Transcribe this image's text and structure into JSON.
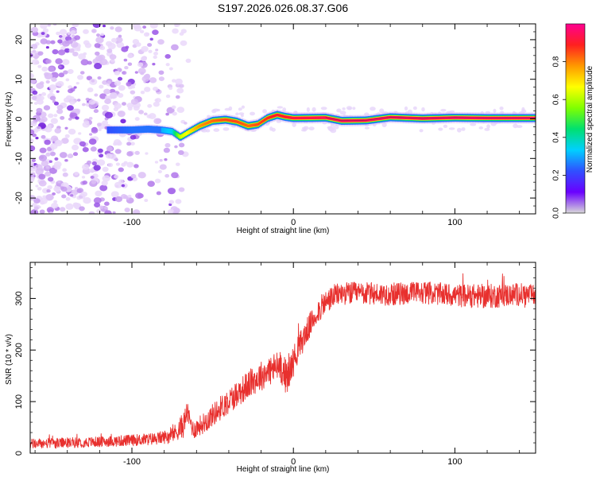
{
  "page_title": "S197.2026.026.08.37.G06",
  "colors": {
    "background": "#ffffff",
    "axis": "#000000",
    "snr_line": "#e8302e",
    "scatter_noise": "#8a2be2",
    "colorbar_stops": [
      "#d8d8d8",
      "#6a00ff",
      "#3050ff",
      "#00d0ff",
      "#00e070",
      "#80ff00",
      "#ffff00",
      "#ff9900",
      "#ff2020",
      "#ff0090"
    ]
  },
  "chart_data": [
    {
      "id": "spectrogram",
      "type": "heatmap",
      "title": "S197.2026.026.08.37.G06",
      "xlabel": "Height of straight line (km)",
      "ylabel": "Frequency (Hz)",
      "xlim": [
        -163,
        150
      ],
      "ylim": [
        -24,
        24
      ],
      "xticks": [
        -100,
        0,
        100
      ],
      "xtick_labels": [
        "-100",
        "0",
        "100"
      ],
      "yticks": [
        -20,
        -10,
        0,
        10,
        20
      ],
      "ytick_labels": [
        "-20",
        "-10",
        "0",
        "10",
        "20"
      ],
      "noise_region_x": [
        -163,
        -65
      ],
      "signal_track": {
        "x": [
          -115,
          -100,
          -90,
          -82,
          -75,
          -70,
          -65,
          -58,
          -50,
          -42,
          -35,
          -28,
          -22,
          -16,
          -10,
          -5,
          0,
          20,
          30,
          45,
          60,
          80,
          100,
          120,
          150
        ],
        "freq": [
          -2.8,
          -2.8,
          -2.6,
          -2.8,
          -3.2,
          -4.6,
          -3.4,
          -1.8,
          -0.5,
          -0.2,
          -0.7,
          -1.8,
          -1.4,
          0.2,
          1.0,
          0.5,
          0.2,
          0.3,
          -0.5,
          -0.4,
          0.4,
          0.1,
          0.3,
          0.2,
          0.2
        ],
        "amplitude": [
          0.22,
          0.25,
          0.28,
          0.3,
          0.35,
          0.62,
          0.68,
          0.78,
          0.82,
          0.85,
          0.85,
          0.82,
          0.85,
          0.88,
          0.9,
          0.9,
          0.92,
          0.94,
          0.95,
          0.95,
          0.95,
          0.95,
          0.96,
          0.96,
          0.96
        ]
      },
      "colorbar": {
        "label": "Normalized spectral amplitude",
        "range": [
          0,
          1
        ],
        "ticks": [
          0.0,
          0.2,
          0.4,
          0.6,
          0.8
        ],
        "tick_labels": [
          "0.0",
          "0.2",
          "0.4",
          "0.6",
          "0.8"
        ]
      }
    },
    {
      "id": "snr",
      "type": "line",
      "xlabel": "Height of straight line (km)",
      "ylabel": "SNR (10 * v/v)",
      "xlim": [
        -163,
        150
      ],
      "ylim": [
        0,
        370
      ],
      "xticks": [
        -100,
        0,
        100
      ],
      "xtick_labels": [
        "-100",
        "0",
        "100"
      ],
      "yticks": [
        0,
        100,
        200,
        300
      ],
      "ytick_labels": [
        "0",
        "100",
        "200",
        "300"
      ],
      "series": [
        {
          "name": "SNR",
          "x": [
            -163,
            -140,
            -120,
            -100,
            -85,
            -75,
            -68,
            -66,
            -62,
            -55,
            -45,
            -35,
            -25,
            -15,
            -8,
            -4,
            2,
            8,
            15,
            20,
            25,
            30,
            40,
            60,
            80,
            100,
            120,
            140,
            150
          ],
          "mean": [
            18,
            20,
            22,
            25,
            28,
            35,
            55,
            80,
            45,
            60,
            88,
            115,
            140,
            160,
            170,
            145,
            195,
            235,
            275,
            292,
            305,
            310,
            310,
            308,
            312,
            306,
            304,
            308,
            306
          ],
          "noise": [
            10,
            10,
            10,
            11,
            12,
            14,
            25,
            20,
            18,
            20,
            24,
            26,
            28,
            30,
            32,
            34,
            28,
            25,
            24,
            24,
            22,
            22,
            22,
            22,
            22,
            22,
            24,
            22,
            20
          ]
        }
      ]
    }
  ]
}
